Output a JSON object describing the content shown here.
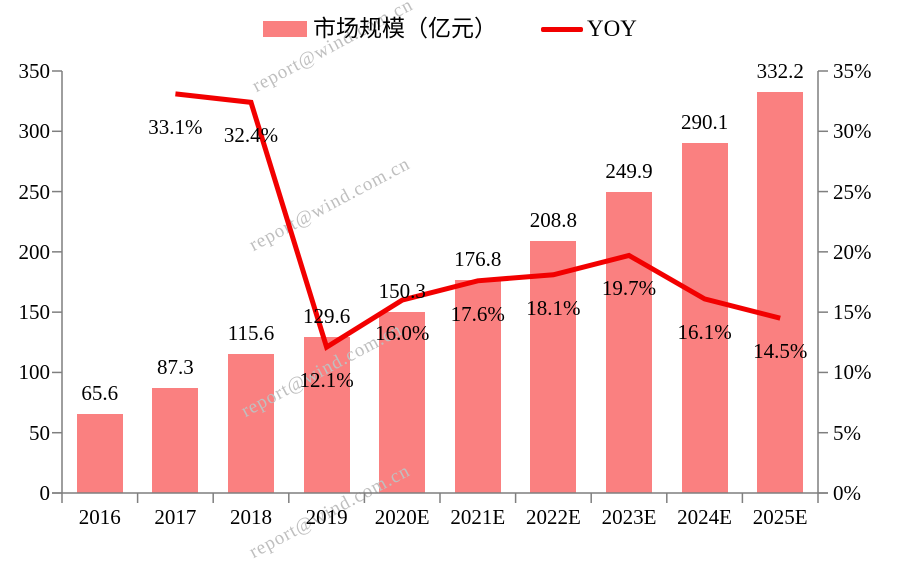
{
  "legend": {
    "bar": {
      "label": "市场规模（亿元）"
    },
    "line": {
      "label": "YOY"
    }
  },
  "watermark": {
    "text": "report@wind.com.cn"
  },
  "colors": {
    "bar": "#FA8080",
    "line": "#F20000",
    "axis": "#7F7F7F",
    "text": "#000000",
    "watermark": "#BFBFBF"
  },
  "chart_data": {
    "type": "bar",
    "title": "",
    "categories": [
      "2016",
      "2017",
      "2018",
      "2019",
      "2020E",
      "2021E",
      "2022E",
      "2023E",
      "2024E",
      "2025E"
    ],
    "series": [
      {
        "name": "市场规模（亿元）",
        "type": "bar",
        "axis": "left",
        "values": [
          65.6,
          87.3,
          115.6,
          129.6,
          150.3,
          176.8,
          208.8,
          249.9,
          290.1,
          332.2
        ],
        "labels": [
          "65.6",
          "87.3",
          "115.6",
          "129.6",
          "150.3",
          "176.8",
          "208.8",
          "249.9",
          "290.1",
          "332.2"
        ]
      },
      {
        "name": "YOY",
        "type": "line",
        "axis": "right",
        "values": [
          null,
          33.1,
          32.4,
          12.1,
          16.0,
          17.6,
          18.1,
          19.7,
          16.1,
          14.5
        ],
        "labels": [
          "",
          "33.1%",
          "32.4%",
          "12.1%",
          "16.0%",
          "17.6%",
          "18.1%",
          "19.7%",
          "16.1%",
          "14.5%"
        ]
      }
    ],
    "left_axis": {
      "min": 0,
      "max": 350,
      "step": 50,
      "tick_labels": [
        "0",
        "50",
        "100",
        "150",
        "200",
        "250",
        "300",
        "350"
      ]
    },
    "right_axis": {
      "min": 0,
      "max": 35,
      "step": 5,
      "tick_labels": [
        "0%",
        "5%",
        "10%",
        "15%",
        "20%",
        "25%",
        "30%",
        "35%"
      ]
    },
    "grid": false,
    "legend_position": "top"
  }
}
